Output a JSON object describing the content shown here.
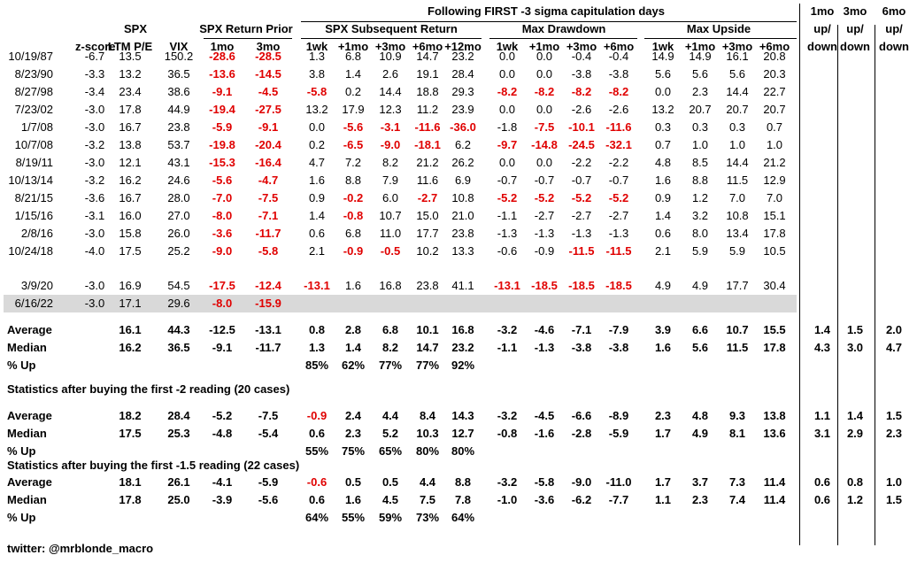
{
  "chart_data": {
    "type": "table",
    "title": "Following FIRST -3 sigma capitulation days",
    "group_headers": {
      "spx": "SPX",
      "spx_return_prior": "SPX Return Prior",
      "spx_subsequent_return": "SPX Subsequent Return",
      "max_drawdown": "Max Drawdown",
      "max_upside": "Max Upside",
      "ud1_top": "1mo",
      "ud1_bottom": "up/",
      "ud1_bottom2": "down",
      "ud3_top": "3mo",
      "ud3_bottom": "up/",
      "ud3_bottom2": "down",
      "ud6_top": "6mo",
      "ud6_bottom": "up/",
      "ud6_bottom2": "down"
    },
    "columns": [
      "z-score",
      "LTM P/E",
      "VIX",
      "1mo",
      "3mo",
      "1wk",
      "+1mo",
      "+3mo",
      "+6mo",
      "+12mo",
      "1wk",
      "+1mo",
      "+3mo",
      "+6mo",
      "1wk",
      "+1mo",
      "+3mo",
      "+6mo"
    ],
    "rows": [
      {
        "date": "10/19/87",
        "values": [
          "-6.7",
          "13.5",
          "150.2",
          "-28.6",
          "-28.5",
          "1.3",
          "6.8",
          "10.9",
          "14.7",
          "23.2",
          "0.0",
          "0.0",
          "-0.4",
          "-0.4",
          "14.9",
          "14.9",
          "16.1",
          "20.8"
        ],
        "red": [
          3,
          4
        ]
      },
      {
        "date": "8/23/90",
        "values": [
          "-3.3",
          "13.2",
          "36.5",
          "-13.6",
          "-14.5",
          "3.8",
          "1.4",
          "2.6",
          "19.1",
          "28.4",
          "0.0",
          "0.0",
          "-3.8",
          "-3.8",
          "5.6",
          "5.6",
          "5.6",
          "20.3"
        ],
        "red": [
          3,
          4
        ]
      },
      {
        "date": "8/27/98",
        "values": [
          "-3.4",
          "23.4",
          "38.6",
          "-9.1",
          "-4.5",
          "-5.8",
          "0.2",
          "14.4",
          "18.8",
          "29.3",
          "-8.2",
          "-8.2",
          "-8.2",
          "-8.2",
          "0.0",
          "2.3",
          "14.4",
          "22.7"
        ],
        "red": [
          3,
          4,
          5,
          10,
          11,
          12,
          13
        ]
      },
      {
        "date": "7/23/02",
        "values": [
          "-3.0",
          "17.8",
          "44.9",
          "-19.4",
          "-27.5",
          "13.2",
          "17.9",
          "12.3",
          "11.2",
          "23.9",
          "0.0",
          "0.0",
          "-2.6",
          "-2.6",
          "13.2",
          "20.7",
          "20.7",
          "20.7"
        ],
        "red": [
          3,
          4
        ]
      },
      {
        "date": "1/7/08",
        "values": [
          "-3.0",
          "16.7",
          "23.8",
          "-5.9",
          "-9.1",
          "0.0",
          "-5.6",
          "-3.1",
          "-11.6",
          "-36.0",
          "-1.8",
          "-7.5",
          "-10.1",
          "-11.6",
          "0.3",
          "0.3",
          "0.3",
          "0.7"
        ],
        "red": [
          3,
          4,
          6,
          7,
          8,
          9,
          11,
          12,
          13
        ]
      },
      {
        "date": "10/7/08",
        "values": [
          "-3.2",
          "13.8",
          "53.7",
          "-19.8",
          "-20.4",
          "0.2",
          "-6.5",
          "-9.0",
          "-18.1",
          "6.2",
          "-9.7",
          "-14.8",
          "-24.5",
          "-32.1",
          "0.7",
          "1.0",
          "1.0",
          "1.0"
        ],
        "red": [
          3,
          4,
          6,
          7,
          8,
          10,
          11,
          12,
          13
        ]
      },
      {
        "date": "8/19/11",
        "values": [
          "-3.0",
          "12.1",
          "43.1",
          "-15.3",
          "-16.4",
          "4.7",
          "7.2",
          "8.2",
          "21.2",
          "26.2",
          "0.0",
          "0.0",
          "-2.2",
          "-2.2",
          "4.8",
          "8.5",
          "14.4",
          "21.2"
        ],
        "red": [
          3,
          4
        ]
      },
      {
        "date": "10/13/14",
        "values": [
          "-3.2",
          "16.2",
          "24.6",
          "-5.6",
          "-4.7",
          "1.6",
          "8.8",
          "7.9",
          "11.6",
          "6.9",
          "-0.7",
          "-0.7",
          "-0.7",
          "-0.7",
          "1.6",
          "8.8",
          "11.5",
          "12.9"
        ],
        "red": [
          3,
          4
        ]
      },
      {
        "date": "8/21/15",
        "values": [
          "-3.6",
          "16.7",
          "28.0",
          "-7.0",
          "-7.5",
          "0.9",
          "-0.2",
          "6.0",
          "-2.7",
          "10.8",
          "-5.2",
          "-5.2",
          "-5.2",
          "-5.2",
          "0.9",
          "1.2",
          "7.0",
          "7.0"
        ],
        "red": [
          3,
          4,
          6,
          8,
          10,
          11,
          12,
          13
        ]
      },
      {
        "date": "1/15/16",
        "values": [
          "-3.1",
          "16.0",
          "27.0",
          "-8.0",
          "-7.1",
          "1.4",
          "-0.8",
          "10.7",
          "15.0",
          "21.0",
          "-1.1",
          "-2.7",
          "-2.7",
          "-2.7",
          "1.4",
          "3.2",
          "10.8",
          "15.1"
        ],
        "red": [
          3,
          4,
          6
        ]
      },
      {
        "date": "2/8/16",
        "values": [
          "-3.0",
          "15.8",
          "26.0",
          "-3.6",
          "-11.7",
          "0.6",
          "6.8",
          "11.0",
          "17.7",
          "23.8",
          "-1.3",
          "-1.3",
          "-1.3",
          "-1.3",
          "0.6",
          "8.0",
          "13.4",
          "17.8"
        ],
        "red": [
          3,
          4
        ]
      },
      {
        "date": "10/24/18",
        "values": [
          "-4.0",
          "17.5",
          "25.2",
          "-9.0",
          "-5.8",
          "2.1",
          "-0.9",
          "-0.5",
          "10.2",
          "13.3",
          "-0.6",
          "-0.9",
          "-11.5",
          "-11.5",
          "2.1",
          "5.9",
          "5.9",
          "10.5"
        ],
        "red": [
          3,
          4,
          6,
          7,
          12,
          13
        ]
      },
      {
        "date": "3/9/20",
        "values": [
          "-3.0",
          "16.9",
          "54.5",
          "-17.5",
          "-12.4",
          "-13.1",
          "1.6",
          "16.8",
          "23.8",
          "41.1",
          "-13.1",
          "-18.5",
          "-18.5",
          "-18.5",
          "4.9",
          "4.9",
          "17.7",
          "30.4"
        ],
        "red": [
          3,
          4,
          5,
          10,
          11,
          12,
          13
        ]
      },
      {
        "date": "6/16/22",
        "values": [
          "-3.0",
          "17.1",
          "29.6",
          "-8.0",
          "-15.9",
          "",
          "",
          "",
          "",
          "",
          "",
          "",
          "",
          "",
          "",
          "",
          "",
          ""
        ],
        "red": [
          3,
          4
        ],
        "highlight": true
      }
    ],
    "summary_sections": [
      {
        "title": "",
        "rows": [
          {
            "label": "Average",
            "values": [
              "",
              "16.1",
              "44.3",
              "-12.5",
              "-13.1",
              "0.8",
              "2.8",
              "6.8",
              "10.1",
              "16.8",
              "-3.2",
              "-4.6",
              "-7.1",
              "-7.9",
              "3.9",
              "6.6",
              "10.7",
              "15.5"
            ],
            "updown": [
              "1.4",
              "1.5",
              "2.0"
            ],
            "red": []
          },
          {
            "label": "Median",
            "values": [
              "",
              "16.2",
              "36.5",
              "-9.1",
              "-11.7",
              "1.3",
              "1.4",
              "8.2",
              "14.7",
              "23.2",
              "-1.1",
              "-1.3",
              "-3.8",
              "-3.8",
              "1.6",
              "5.6",
              "11.5",
              "17.8"
            ],
            "updown": [
              "4.3",
              "3.0",
              "4.7"
            ],
            "red": []
          },
          {
            "label": "% Up",
            "values": [
              "",
              "",
              "",
              "",
              "",
              "85%",
              "62%",
              "77%",
              "77%",
              "92%",
              "",
              "",
              "",
              "",
              "",
              "",
              "",
              ""
            ],
            "updown": [
              "",
              "",
              ""
            ],
            "red": []
          }
        ]
      },
      {
        "title": "Statistics after buying the first -2 reading (20 cases)",
        "rows": [
          {
            "label": "Average",
            "values": [
              "",
              "18.2",
              "28.4",
              "-5.2",
              "-7.5",
              "-0.9",
              "2.4",
              "4.4",
              "8.4",
              "14.3",
              "-3.2",
              "-4.5",
              "-6.6",
              "-8.9",
              "2.3",
              "4.8",
              "9.3",
              "13.8"
            ],
            "updown": [
              "1.1",
              "1.4",
              "1.5"
            ],
            "red": [
              5
            ]
          },
          {
            "label": "Median",
            "values": [
              "",
              "17.5",
              "25.3",
              "-4.8",
              "-5.4",
              "0.6",
              "2.3",
              "5.2",
              "10.3",
              "12.7",
              "-0.8",
              "-1.6",
              "-2.8",
              "-5.9",
              "1.7",
              "4.9",
              "8.1",
              "13.6"
            ],
            "updown": [
              "3.1",
              "2.9",
              "2.3"
            ],
            "red": []
          },
          {
            "label": "% Up",
            "values": [
              "",
              "",
              "",
              "",
              "",
              "55%",
              "75%",
              "65%",
              "80%",
              "80%",
              "",
              "",
              "",
              "",
              "",
              "",
              "",
              ""
            ],
            "updown": [
              "",
              "",
              ""
            ],
            "red": []
          }
        ]
      },
      {
        "title": "Statistics after buying the first -1.5 reading (22 cases)",
        "rows": [
          {
            "label": "Average",
            "values": [
              "",
              "18.1",
              "26.1",
              "-4.1",
              "-5.9",
              "-0.6",
              "0.5",
              "0.5",
              "4.4",
              "8.8",
              "-3.2",
              "-5.8",
              "-9.0",
              "-11.0",
              "1.7",
              "3.7",
              "7.3",
              "11.4"
            ],
            "updown": [
              "0.6",
              "0.8",
              "1.0"
            ],
            "red": [
              5
            ]
          },
          {
            "label": "Median",
            "values": [
              "",
              "17.8",
              "25.0",
              "-3.9",
              "-5.6",
              "0.6",
              "1.6",
              "4.5",
              "7.5",
              "7.8",
              "-1.0",
              "-3.6",
              "-6.2",
              "-7.7",
              "1.1",
              "2.3",
              "7.4",
              "11.4"
            ],
            "updown": [
              "0.6",
              "1.2",
              "1.5"
            ],
            "red": []
          },
          {
            "label": "% Up",
            "values": [
              "",
              "",
              "",
              "",
              "",
              "64%",
              "55%",
              "59%",
              "73%",
              "64%",
              "",
              "",
              "",
              "",
              "",
              "",
              "",
              ""
            ],
            "updown": [
              "",
              "",
              ""
            ],
            "red": []
          }
        ]
      }
    ],
    "footer": "twitter: @mrblonde_macro",
    "colors": {
      "negative": "#e00000",
      "highlight_row": "#d9d9d9",
      "text": "#000000"
    }
  }
}
